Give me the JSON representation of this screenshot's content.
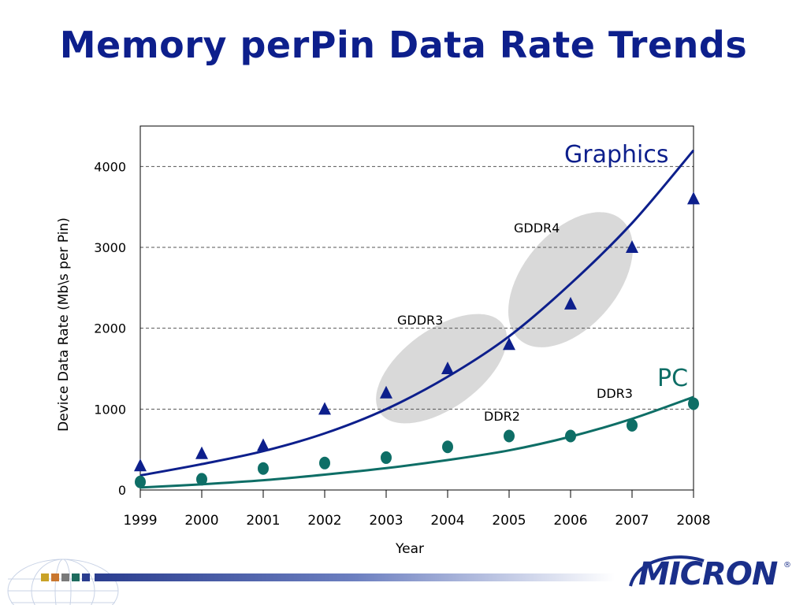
{
  "slide": {
    "title": "Memory perPin Data Rate Trends",
    "brand": "MICRON",
    "brand_mark": "®"
  },
  "colors": {
    "title": "#0d1f8c",
    "graphics": "#0d1f8c",
    "pc": "#0e6e66",
    "ellipse": "#d9d9d9",
    "grid": "#555555",
    "footer_squares": [
      "#c9a227",
      "#c9772f",
      "#7a7a7a",
      "#1e6b5e",
      "#2a3d8f"
    ]
  },
  "chart_data": {
    "type": "scatter",
    "xlabel": "Year",
    "ylabel": "Device Data Rate (Mb\\s per Pin)",
    "x_ticks": [
      "1999",
      "2000",
      "2001",
      "2002",
      "2003",
      "2004",
      "2005",
      "2006",
      "2007",
      "2008"
    ],
    "y_ticks": [
      "0",
      "1000",
      "2000",
      "3000",
      "4000"
    ],
    "xlim": [
      1999,
      2008
    ],
    "ylim": [
      0,
      4500
    ],
    "grid": "horizontal dashed",
    "series": [
      {
        "name": "Graphics",
        "marker": "triangle",
        "x": [
          1999,
          2000,
          2001,
          2002,
          2003,
          2004,
          2005,
          2006,
          2007,
          2008
        ],
        "y": [
          300,
          450,
          550,
          1000,
          1200,
          1500,
          1800,
          2300,
          3000,
          3600
        ]
      },
      {
        "name": "PC",
        "marker": "circle",
        "x": [
          1999,
          2000,
          2001,
          2002,
          2003,
          2004,
          2005,
          2006,
          2007,
          2008
        ],
        "y": [
          100,
          133,
          266,
          333,
          400,
          533,
          667,
          667,
          800,
          1067
        ]
      }
    ],
    "trendlines": [
      {
        "series": "Graphics",
        "x": [
          1999,
          2000,
          2001,
          2002,
          2003,
          2004,
          2005,
          2006,
          2007,
          2008
        ],
        "y": [
          180,
          320,
          480,
          700,
          1000,
          1400,
          1900,
          2550,
          3300,
          4200
        ]
      },
      {
        "series": "PC",
        "x": [
          1999,
          2000,
          2001,
          2002,
          2003,
          2004,
          2005,
          2006,
          2007,
          2008
        ],
        "y": [
          30,
          70,
          120,
          190,
          270,
          370,
          490,
          660,
          880,
          1150
        ]
      }
    ],
    "annotations": [
      {
        "label": "GDDR3",
        "x_range": [
          2003,
          2005
        ]
      },
      {
        "label": "GDDR4",
        "x_range": [
          2005.1,
          2007.2
        ]
      },
      {
        "label": "DDR2"
      },
      {
        "label": "DDR3"
      }
    ]
  }
}
